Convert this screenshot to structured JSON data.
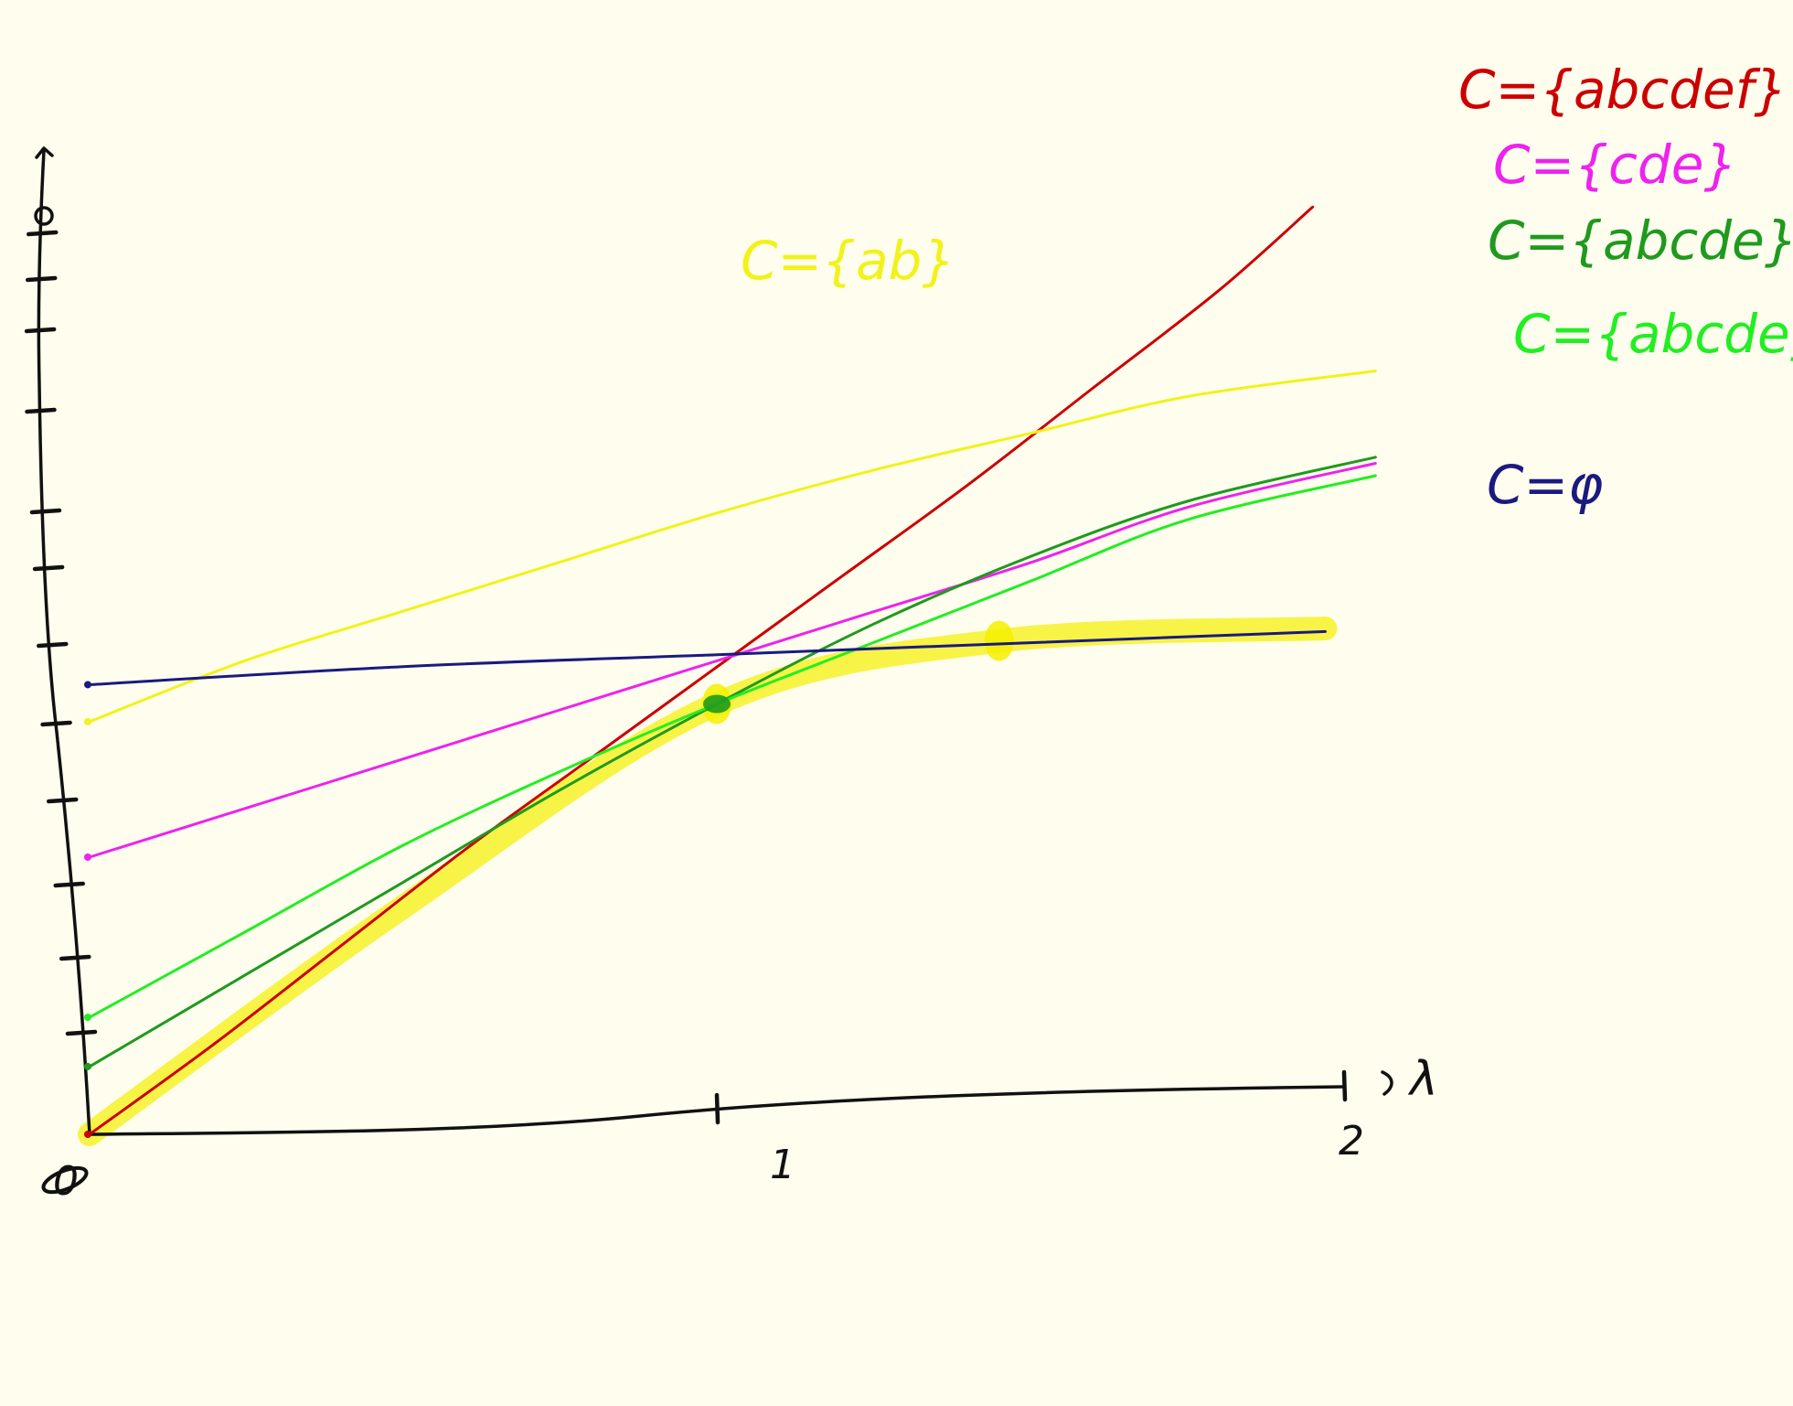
{
  "chart_data": {
    "type": "line",
    "title": "",
    "xlabel": "λ",
    "ylabel": "",
    "xlim": [
      0,
      2
    ],
    "ylim": [
      0,
      15
    ],
    "grid": false,
    "x_tick_labels": [
      "0",
      "1",
      "2"
    ],
    "y_tick_count": 13,
    "series": [
      {
        "name": "C={abcdef}",
        "color": "#cc0000",
        "x": [
          0,
          0.2,
          0.4,
          0.6,
          0.8,
          1.0,
          1.2,
          1.4,
          1.6,
          1.8,
          1.95
        ],
        "y": [
          0,
          1.4,
          2.9,
          4.4,
          5.8,
          7.2,
          8.6,
          10.0,
          11.5,
          13.0,
          14.3
        ]
      },
      {
        "name": "C={cde}",
        "color": "#ee22ee",
        "x": [
          0,
          0.25,
          0.5,
          0.75,
          1.0,
          1.25,
          1.5,
          1.75,
          2.05
        ],
        "y": [
          4.5,
          5.2,
          5.9,
          6.6,
          7.3,
          8.0,
          8.7,
          9.5,
          10.1
        ]
      },
      {
        "name": "C={abcde}",
        "color": "#1e9a1e",
        "x": [
          0,
          0.25,
          0.5,
          0.75,
          1.0,
          1.25,
          1.5,
          1.75,
          2.05
        ],
        "y": [
          1.1,
          2.5,
          3.9,
          5.3,
          6.6,
          7.8,
          8.8,
          9.6,
          10.2
        ]
      },
      {
        "name": "C={abcde}",
        "color": "#22ee22",
        "x": [
          0,
          0.25,
          0.5,
          0.75,
          1.0,
          1.25,
          1.5,
          1.75,
          2.05
        ],
        "y": [
          1.9,
          3.2,
          4.5,
          5.6,
          6.6,
          7.5,
          8.4,
          9.3,
          9.9
        ]
      },
      {
        "name": "C={ab}",
        "color": "#f2f21a",
        "x": [
          0,
          0.25,
          0.5,
          0.75,
          1.0,
          1.25,
          1.5,
          1.75,
          2.05
        ],
        "y": [
          6.7,
          7.6,
          8.3,
          9.0,
          9.7,
          10.3,
          10.8,
          11.3,
          11.6
        ]
      },
      {
        "name": "C=φ",
        "color": "#1a1a80",
        "x": [
          0,
          0.5,
          1.0,
          1.5,
          1.97
        ],
        "y": [
          7.3,
          7.4,
          7.4,
          7.4,
          7.4
        ]
      }
    ],
    "highlight": {
      "description": "",
      "color": "#f4f000",
      "x": [
        0,
        0.5,
        1.0,
        1.45,
        1.97
      ],
      "y": [
        0,
        3.5,
        6.6,
        7.45,
        7.45
      ]
    },
    "annotations": [
      {
        "text": "0",
        "kind": "origin-label"
      }
    ]
  },
  "colors": {
    "background": "#fefdee",
    "axis": "#111111"
  }
}
